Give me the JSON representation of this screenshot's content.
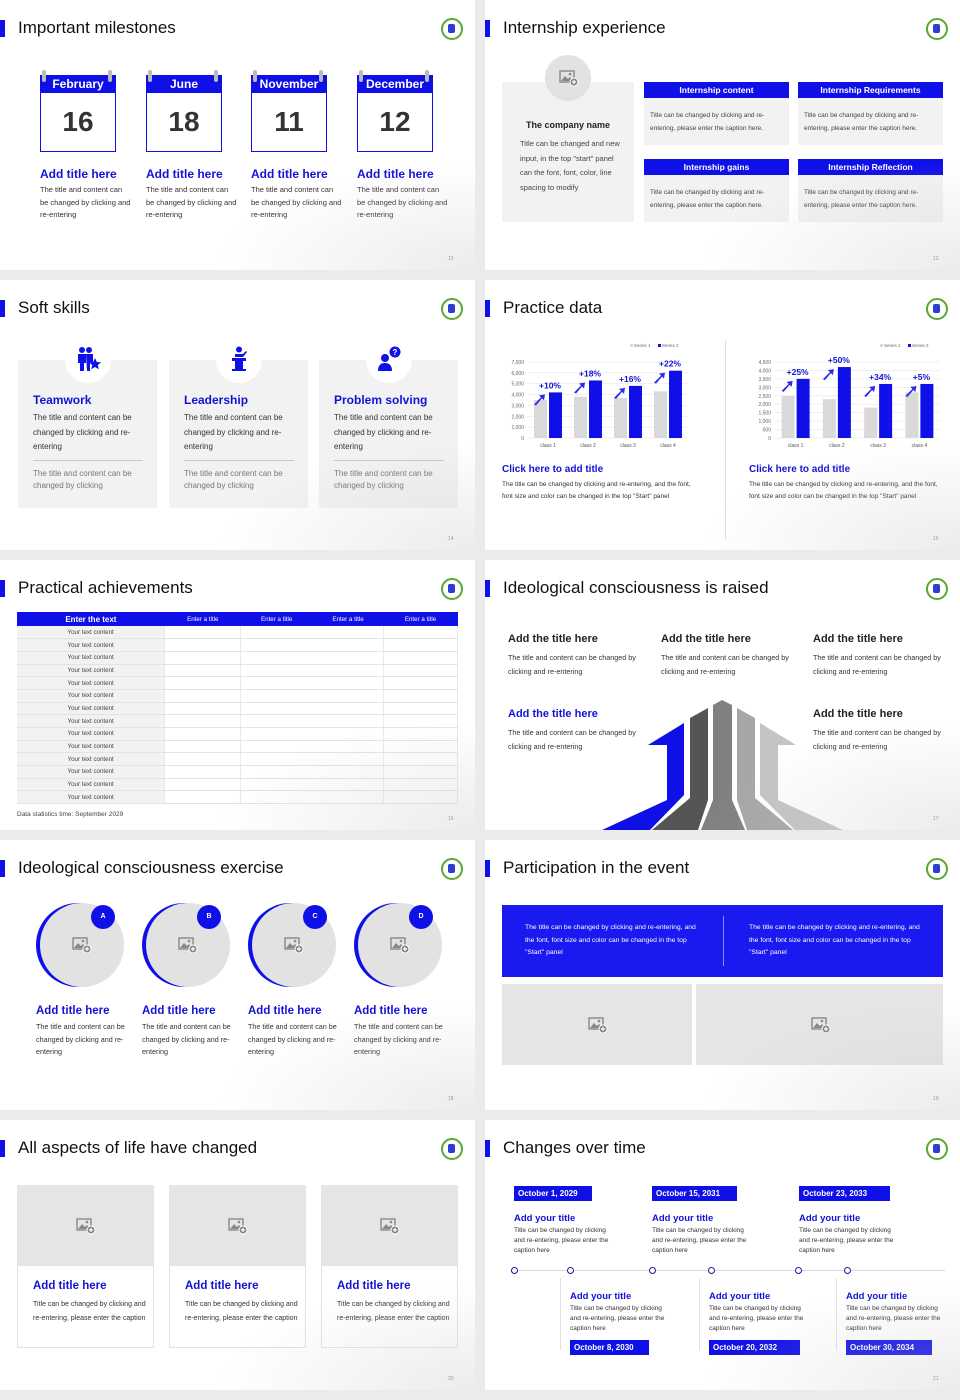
{
  "brand": {
    "accent": "#0f0fe8",
    "panel_gray": "#f2f2f2",
    "series1_gray": "#d9d9d9"
  },
  "slides": [
    {
      "title": "Important milestones",
      "page": "12",
      "calendars": [
        {
          "month": "February",
          "day": "16",
          "title": "Add title here",
          "text": "The title and content can be changed by clicking and re-entering"
        },
        {
          "month": "June",
          "day": "18",
          "title": "Add title here",
          "text": "The title and content can be changed by clicking and re-entering"
        },
        {
          "month": "November",
          "day": "11",
          "title": "Add title here",
          "text": "The title and content can be changed by clicking and re-entering"
        },
        {
          "month": "December",
          "day": "12",
          "title": "Add title here",
          "text": "The title and content can be changed by clicking and re-entering"
        }
      ]
    },
    {
      "title": "Internship experience",
      "page": "13",
      "company": {
        "name": "The company name",
        "text": "Title can be changed and new input, in the top \"start\" panel can the font, font, color, line spacing to modify"
      },
      "boxes": [
        {
          "header": "Internship content",
          "text": "Title can be changed by clicking and re-entering, please enter the caption here."
        },
        {
          "header": "Internship Requirements",
          "text": "Title can be changed by clicking and re-entering, please enter the caption here."
        },
        {
          "header": "Internship gains",
          "text": "Title can be changed by clicking and re-entering, please enter the caption here."
        },
        {
          "header": "Internship Reflection",
          "text": "Title can be changed by clicking and re-entering, please enter the caption here."
        }
      ]
    },
    {
      "title": "Soft skills",
      "page": "14",
      "cards": [
        {
          "icon": "teamwork-icon",
          "title": "Teamwork",
          "text": "The title and content can be changed by clicking and re-entering",
          "subtext": "The title and content can be changed by clicking"
        },
        {
          "icon": "podium-speaker-icon",
          "title": "Leadership",
          "text": "The title and content can be changed by clicking and re-entering",
          "subtext": "The title and content can be changed by clicking"
        },
        {
          "icon": "person-question-icon",
          "title": "Problem solving",
          "text": "The title and content can be changed by clicking and re-entering",
          "subtext": "The title and content can be changed by clicking"
        }
      ]
    },
    {
      "title": "Practice data",
      "page": "15",
      "panels": [
        {
          "title": "Click here to add title",
          "text": "The title can be changed by clicking and re-entering, and the font, font size and color can be changed in the top \"Start\" panel"
        },
        {
          "title": "Click here to add title",
          "text": "The title can be changed by clicking and re-entering, and the font, font size and color can be changed in the top \"Start\" panel"
        }
      ]
    },
    {
      "title": "Practical achievements",
      "page": "16",
      "table": {
        "headers": [
          "Enter the text",
          "Enter a title",
          "Enter a title",
          "Enter a title",
          "Enter a title"
        ],
        "rows": [
          "Your text content",
          "Your text content",
          "Your text content",
          "Your text content",
          "Your text content",
          "Your text content",
          "Your text content",
          "Your text content",
          "Your text content",
          "Your text content",
          "Your text content",
          "Your text content",
          "Your text content",
          "Your text content"
        ]
      },
      "footnote": "Data statistics time: September 2029"
    },
    {
      "title": "Ideological consciousness is raised",
      "page": "17",
      "items": [
        {
          "title": "Add the title here",
          "text": "The title and content can be changed by clicking and re-entering"
        },
        {
          "title": "Add the title here",
          "text": "The title and content can be changed by clicking and re-entering"
        },
        {
          "title": "Add the title here",
          "text": "The title and content can be changed by clicking and re-entering"
        },
        {
          "title": "Add the title here",
          "text": "The title and content can be changed by clicking and re-entering"
        },
        {
          "title": "Add the title here",
          "text": "The title and content can be changed by clicking and re-entering"
        }
      ]
    },
    {
      "title": "Ideological consciousness exercise",
      "page": "18",
      "items": [
        {
          "badge": "A",
          "title": "Add title here",
          "text": "The title and content can be changed by clicking and re-entering"
        },
        {
          "badge": "B",
          "title": "Add title here",
          "text": "The title and content can be changed by clicking and re-entering"
        },
        {
          "badge": "C",
          "title": "Add title here",
          "text": "The title and content can be changed by clicking and re-entering"
        },
        {
          "badge": "D",
          "title": "Add title here",
          "text": "The title and content can be changed by clicking and re-entering"
        }
      ]
    },
    {
      "title": "Participation in the event",
      "page": "19",
      "texts": [
        "The title can be changed by clicking and re-entering, and the font, font size and color can be changed in the top \"Start\" panel",
        "The title can be changed by clicking and re-entering, and the font, font size and color can be changed in the top \"Start\" panel"
      ]
    },
    {
      "title": "All aspects of life have changed",
      "page": "20",
      "cards": [
        {
          "title": "Add title here",
          "text": "Title can be changed by clicking and re-entering, please enter the caption"
        },
        {
          "title": "Add title here",
          "text": "Title can be changed by clicking and re-entering, please enter the caption"
        },
        {
          "title": "Add title here",
          "text": "Title can be changed by clicking and re-entering, please enter the caption"
        }
      ]
    },
    {
      "title": "Changes over time",
      "page": "21",
      "events": [
        {
          "date": "October 1, 2029",
          "title": "Add your title",
          "text": "Title can be changed by clicking and re-entering, please enter the caption here"
        },
        {
          "date": "October 8, 2030",
          "title": "Add your title",
          "text": "Title can be changed by clicking and re-entering, please enter the caption here"
        },
        {
          "date": "October 15, 2031",
          "title": "Add your title",
          "text": "Title can be changed by clicking and re-entering, please enter the caption here"
        },
        {
          "date": "October 20, 2032",
          "title": "Add your title",
          "text": "Title can be changed by clicking and re-entering, please enter the caption here"
        },
        {
          "date": "October 23, 2033",
          "title": "Add your title",
          "text": "Title can be changed by clicking and re-entering, please enter the caption here"
        },
        {
          "date": "October 30, 2034",
          "title": "Add your title",
          "text": "Title can be changed by clicking and re-entering, please enter the caption here"
        }
      ]
    }
  ],
  "chart_data": [
    {
      "type": "bar",
      "categories": [
        "class 1",
        "class 2",
        "class 3",
        "class 4"
      ],
      "series": [
        {
          "name": "Series 1",
          "values": [
            3500,
            3800,
            3700,
            4300
          ]
        },
        {
          "name": "Series 2",
          "values": [
            4200,
            5300,
            4800,
            6200
          ]
        }
      ],
      "annotations": [
        "+10%",
        "+18%",
        "+16%",
        "+22%"
      ],
      "yticks": [
        "0",
        "1,000",
        "2,000",
        "3,000",
        "4,000",
        "5,000",
        "6,000",
        "7,000"
      ],
      "ylim": [
        0,
        7000
      ],
      "grid": true,
      "legend": "top-right"
    },
    {
      "type": "bar",
      "categories": [
        "class 1",
        "class 2",
        "class 3",
        "class 4"
      ],
      "series": [
        {
          "name": "Series 1",
          "values": [
            2500,
            2300,
            1800,
            2700
          ]
        },
        {
          "name": "Series 2",
          "values": [
            3500,
            4200,
            3200,
            3200
          ]
        }
      ],
      "annotations": [
        "+25%",
        "+50%",
        "+34%",
        "+5%"
      ],
      "yticks": [
        "0",
        "500",
        "1,000",
        "1,500",
        "2,000",
        "2,500",
        "3,000",
        "3,500",
        "4,000",
        "4,500"
      ],
      "ylim": [
        0,
        4500
      ],
      "grid": true,
      "legend": "top-right"
    }
  ]
}
